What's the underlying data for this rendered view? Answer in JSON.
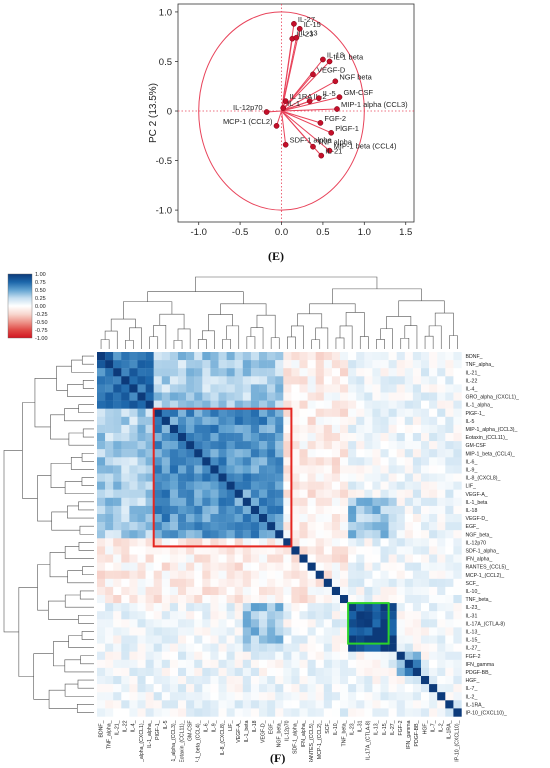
{
  "panels": {
    "top_label": "(E)",
    "bottom_label": "(F)"
  },
  "colors": {
    "pca_accent": "#e8435a",
    "pca_point": "#c40f2a",
    "heat_pos": "#0c3a7a",
    "heat_neg": "#d11521",
    "box_red": "#e52620",
    "box_green": "#2ad32a"
  },
  "chart_data": [
    {
      "type": "scatter",
      "subtype": "pca-biplot",
      "xlabel": "PC 1  (24.7%)",
      "ylabel": "PC 2  (13.5%)",
      "xlim": [
        -1.25,
        1.6
      ],
      "ylim": [
        -1.12,
        1.08
      ],
      "xticks": [
        "-1.0",
        "-0.5",
        "0.0",
        "0.5",
        "1.0",
        "1.5"
      ],
      "yticks": [
        "1.0",
        "0.5",
        "0",
        "-0.5",
        "-1.0"
      ],
      "xtick_values": [
        -1.0,
        -0.5,
        0.0,
        0.5,
        1.0,
        1.5
      ],
      "ytick_values": [
        1.0,
        0.5,
        0.0,
        -0.5,
        -1.0
      ],
      "unit_circle": true,
      "points": [
        {
          "label": "IL-27",
          "x": 0.15,
          "y": 0.88
        },
        {
          "label": "IL-15",
          "x": 0.22,
          "y": 0.83
        },
        {
          "label": "IL-23",
          "x": 0.13,
          "y": 0.73
        },
        {
          "label": "IL-13",
          "x": 0.18,
          "y": 0.74
        },
        {
          "label": "IL-18",
          "x": 0.5,
          "y": 0.52
        },
        {
          "label": "IL-1 beta",
          "x": 0.58,
          "y": 0.5
        },
        {
          "label": "VEGF-D",
          "x": 0.38,
          "y": 0.37
        },
        {
          "label": "NGF beta",
          "x": 0.65,
          "y": 0.3
        },
        {
          "label": "IL 1RA",
          "x": 0.05,
          "y": 0.1
        },
        {
          "label": "IL-1",
          "x": 0.02,
          "y": 0.03
        },
        {
          "label": "IL-2",
          "x": 0.34,
          "y": 0.1
        },
        {
          "label": "IL-5",
          "x": 0.45,
          "y": 0.13
        },
        {
          "label": "GM-CSF",
          "x": 0.7,
          "y": 0.14
        },
        {
          "label": "MIP-1 alpha (CCL3)",
          "x": 0.67,
          "y": 0.02
        },
        {
          "label": "IL-12p70",
          "x": -0.18,
          "y": -0.01
        },
        {
          "label": "MCP-1 (CCL2)",
          "x": -0.06,
          "y": -0.15
        },
        {
          "label": "SDF-1 alpha",
          "x": 0.05,
          "y": -0.34
        },
        {
          "label": "FGF-2",
          "x": 0.47,
          "y": -0.12
        },
        {
          "label": "PlGF-1",
          "x": 0.6,
          "y": -0.22
        },
        {
          "label": "TNF alpha",
          "x": 0.38,
          "y": -0.36
        },
        {
          "label": "MIP-1 beta (CCL4)",
          "x": 0.58,
          "y": -0.4
        },
        {
          "label": "IL-21",
          "x": 0.48,
          "y": -0.45
        }
      ]
    },
    {
      "type": "heatmap",
      "subtype": "clustered-correlation",
      "colorbar": {
        "ticks": [
          "1.00",
          "0.75",
          "0.50",
          "0.25",
          "0.00",
          "-0.25",
          "-0.50",
          "-0.75",
          "-1.00"
        ],
        "tick_values": [
          1.0,
          0.75,
          0.5,
          0.25,
          0.0,
          -0.25,
          -0.5,
          -0.75,
          -1.0
        ],
        "range": [
          -1,
          1
        ]
      },
      "row_labels": [
        "BDNF_",
        "TNF_alpha_",
        "IL-21_",
        "IL-22",
        "IL-4_",
        "GRO_alpha_(CXCL1)_",
        "IL-1_alpha_",
        "PlGF-1_",
        "IL-5",
        "MIP-1_alpha_(CCL3)_",
        "Eotaxin_(CCL11)_",
        "GM-CSF",
        "MIP-1_beta_(CCL4)_",
        "IL-6_",
        "IL-9_",
        "IL-8_(CXCL8)_",
        "LIF_",
        "VEGF-A_",
        "IL-1_beta",
        "IL-18",
        "VEGF-D_",
        "EGF_",
        "NGF_beta_",
        "IL-12p70",
        "SDF-1_alpha_",
        "IFN_alpha_",
        "RANTES_(CCL5)_",
        "MCP-1_(CCL2)_",
        "SCF_",
        "IL-10_",
        "TNF_beta_",
        "IL-23_",
        "IL-31",
        "IL-17A_(CTLA-8)",
        "IL-13_",
        "IL-15_",
        "IL-27_",
        "FGF-2",
        "IFN_gamma",
        "PDGF-BB_",
        "HGF_",
        "IL-7_",
        "IL-2_",
        "IL-1RA_",
        "IP-10_(CXCL10)_"
      ],
      "col_labels": [
        "BDNF_",
        "TNF_alpha_",
        "IL-21_",
        "IL-22",
        "IL-4_",
        "GRO_alpha_(CXCL1)_",
        "IL-1_alpha_",
        "PlGF-1_",
        "IL-5",
        "MIP-1_alpha_(CCL3)_",
        "Eotaxin_(CCL11)_",
        "GM-CSF",
        "MIP-1_beta_(CCL4)_",
        "IL-6_",
        "IL-9_",
        "IL-8_(CXCL8)_",
        "LIF_",
        "VEGF-A_",
        "IL-1_beta",
        "IL-18",
        "VEGF-D_",
        "EGF_",
        "NGF_beta_",
        "IL-12p70",
        "SDF-1_alpha_",
        "IFN_alpha_",
        "RANTES_(CCL5)_",
        "MCP-1_(CCL2)_",
        "SCF_",
        "IL-10_",
        "TNF_beta_",
        "IL-23_",
        "IL-31",
        "IL-17A_(CTLA-8)",
        "IL-13_",
        "IL-15_",
        "IL-27_",
        "FGF-2",
        "IFN_gamma",
        "PDGF-BB_",
        "HGF_",
        "IL-7_",
        "IL-2_",
        "IL-1RA_",
        "IP-10_(CXCL10)_"
      ],
      "diagonal": 1.0,
      "blocks": [
        {
          "rows": [
            0,
            6
          ],
          "cols": [
            0,
            6
          ],
          "value": 0.68
        },
        {
          "rows": [
            7,
            23
          ],
          "cols": [
            7,
            23
          ],
          "value": 0.55,
          "highlight": "red"
        },
        {
          "rows": [
            0,
            6
          ],
          "cols": [
            7,
            23
          ],
          "value": 0.3
        },
        {
          "rows": [
            18,
            22
          ],
          "cols": [
            31,
            36
          ],
          "value": 0.35
        },
        {
          "rows": [
            31,
            36
          ],
          "cols": [
            31,
            36
          ],
          "value": 0.9,
          "highlight": "green"
        },
        {
          "rows": [
            37,
            39
          ],
          "cols": [
            37,
            39
          ],
          "value": 0.5
        },
        {
          "rows": [
            23,
            30
          ],
          "cols": [
            0,
            30
          ],
          "value": -0.1
        }
      ],
      "highlight_boxes": [
        {
          "color": "red",
          "rows": [
            7,
            23
          ]
        },
        {
          "color": "green",
          "rows": [
            31,
            35
          ]
        }
      ]
    }
  ]
}
